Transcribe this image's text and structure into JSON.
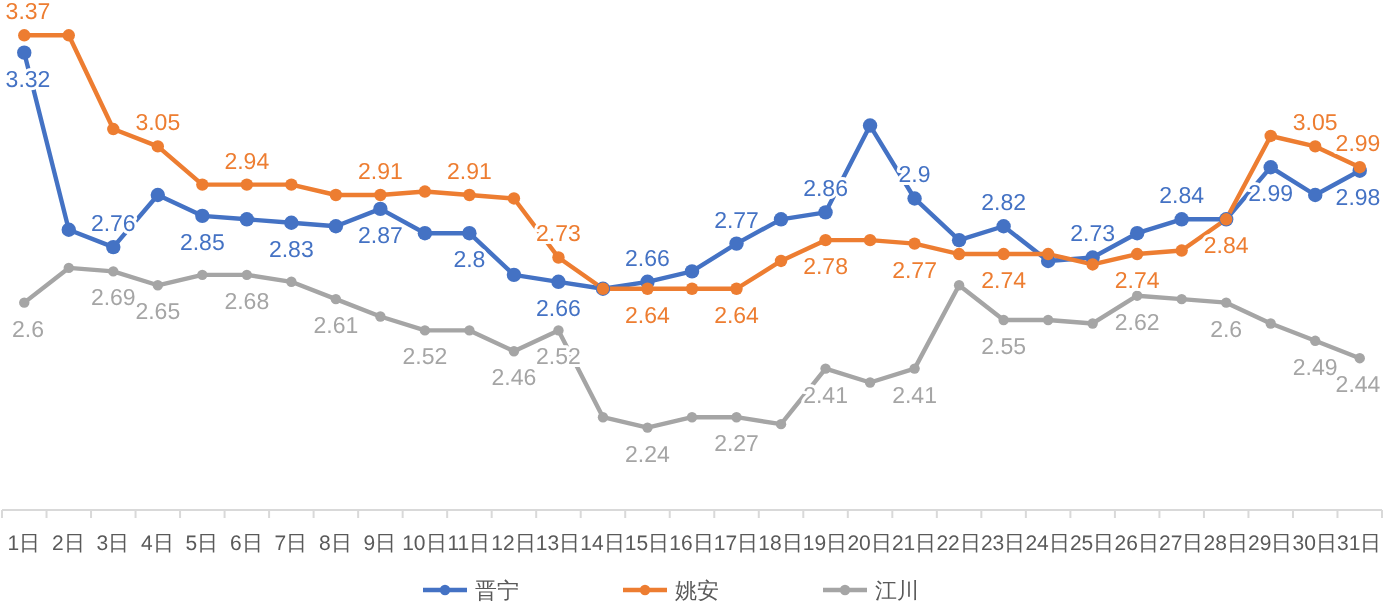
{
  "chart_data": {
    "type": "line",
    "categories": [
      "1日",
      "2日",
      "3日",
      "4日",
      "5日",
      "6日",
      "7日",
      "8日",
      "9日",
      "10日",
      "11日",
      "12日",
      "13日",
      "14日",
      "15日",
      "16日",
      "17日",
      "18日",
      "19日",
      "20日",
      "21日",
      "22日",
      "23日",
      "24日",
      "25日",
      "26日",
      "27日",
      "28日",
      "29日",
      "30日",
      "31日"
    ],
    "legend": "bottom",
    "marker": "circle",
    "grid": false,
    "series": [
      {
        "name": "晋宁",
        "color": "#4472c4",
        "values": [
          3.32,
          2.81,
          2.76,
          2.91,
          2.85,
          2.84,
          2.83,
          2.82,
          2.87,
          2.8,
          2.8,
          2.68,
          2.66,
          2.64,
          2.66,
          2.69,
          2.77,
          2.84,
          2.86,
          3.11,
          2.9,
          2.78,
          2.82,
          2.72,
          2.73,
          2.8,
          2.84,
          2.84,
          2.99,
          2.91,
          2.98
        ],
        "value_labels": [
          "3.32",
          null,
          "2.76",
          null,
          "2.85",
          null,
          "2.83",
          null,
          "2.87",
          null,
          "2.8",
          null,
          "2.66",
          null,
          "2.66",
          null,
          "2.77",
          null,
          "2.86",
          null,
          "2.9",
          null,
          "2.82",
          null,
          "2.73",
          null,
          "2.84",
          null,
          "2.99",
          null,
          "2.98"
        ]
      },
      {
        "name": "姚安",
        "color": "#ed7d31",
        "values": [
          3.37,
          3.37,
          3.1,
          3.05,
          2.94,
          2.94,
          2.94,
          2.91,
          2.91,
          2.92,
          2.91,
          2.9,
          2.73,
          2.64,
          2.64,
          2.64,
          2.64,
          2.72,
          2.78,
          2.78,
          2.77,
          2.74,
          2.74,
          2.74,
          2.71,
          2.74,
          2.75,
          2.84,
          3.08,
          3.05,
          2.99
        ],
        "value_labels": [
          "3.37",
          null,
          null,
          "3.05",
          null,
          "2.94",
          null,
          null,
          "2.91",
          null,
          "2.91",
          null,
          "2.73",
          null,
          "2.64",
          null,
          "2.64",
          null,
          "2.78",
          null,
          "2.77",
          null,
          "2.74",
          null,
          null,
          "2.74",
          null,
          "2.84",
          null,
          "3.05",
          "2.99"
        ]
      },
      {
        "name": "江川",
        "color": "#a5a5a5",
        "values": [
          2.6,
          2.7,
          2.69,
          2.65,
          2.68,
          2.68,
          2.66,
          2.61,
          2.56,
          2.52,
          2.52,
          2.46,
          2.52,
          2.27,
          2.24,
          2.27,
          2.27,
          2.25,
          2.41,
          2.37,
          2.41,
          2.65,
          2.55,
          2.55,
          2.54,
          2.62,
          2.61,
          2.6,
          2.54,
          2.49,
          2.44
        ],
        "value_labels": [
          "2.6",
          null,
          "2.69",
          "2.65",
          null,
          "2.68",
          null,
          "2.61",
          null,
          "2.52",
          null,
          "2.46",
          "2.52",
          null,
          "2.24",
          null,
          "2.27",
          null,
          "2.41",
          null,
          "2.41",
          null,
          "2.55",
          null,
          null,
          "2.62",
          null,
          "2.6",
          null,
          "2.49",
          "2.44"
        ]
      }
    ]
  }
}
